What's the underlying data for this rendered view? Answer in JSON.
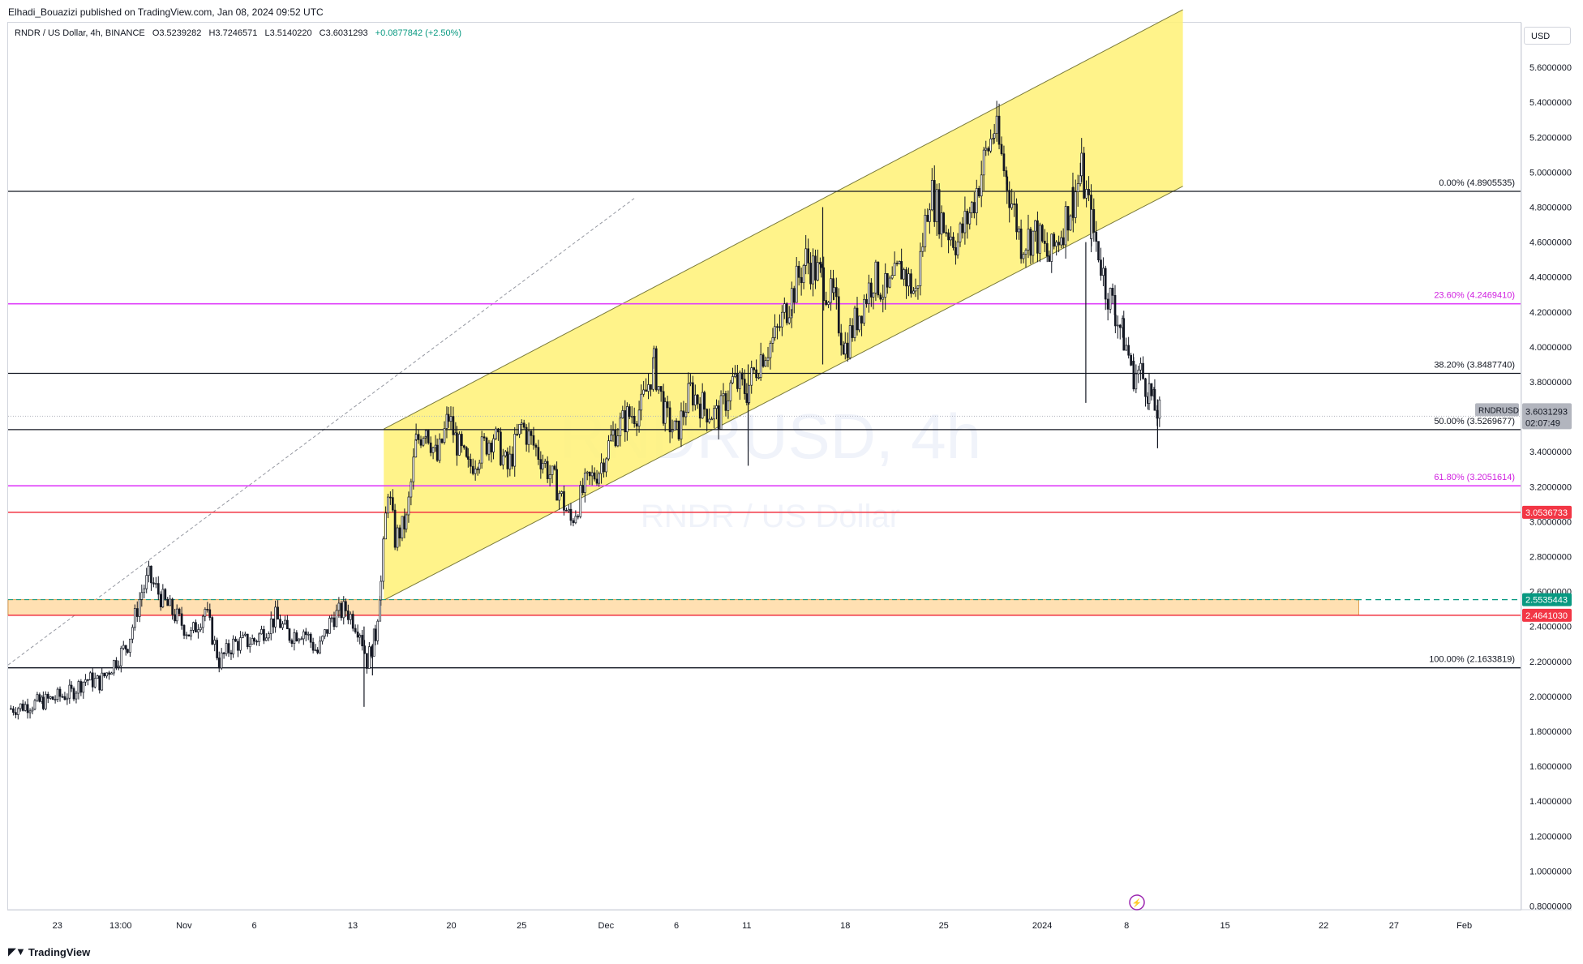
{
  "header": {
    "publisher": "Elhadi_Bouazizi published on TradingView.com, Jan 08, 2024 09:52 UTC"
  },
  "legend": {
    "symbol": "RNDR / US Dollar, 4h, BINANCE",
    "open": "O3.5239282",
    "high": "H3.7246571",
    "low": "L3.5140220",
    "close": "C3.6031293",
    "change": "+0.0877842 (+2.50%)"
  },
  "currency_button": "USD",
  "watermark": {
    "ticker": "RNDRUSD, 4h",
    "name": "RNDR / US Dollar"
  },
  "footer": {
    "brand": "TradingView",
    "icon": "tradingview-logo-icon"
  },
  "colors": {
    "channel_fill": "#fff176",
    "fib_black": "#131722",
    "fib_magenta": "#e040fb",
    "support_red": "#f23645",
    "zone_fill": "#ffe0b2",
    "green_dashed": "#089981",
    "price_label_bg": "#b2b5be"
  },
  "chart_data": {
    "type": "candlestick",
    "symbol": "RNDR / US Dollar",
    "interval": "4h",
    "exchange": "BINANCE",
    "ylim": [
      0.7,
      5.95
    ],
    "y_ticks": [
      "0.8000000",
      "1.0000000",
      "1.2000000",
      "1.4000000",
      "1.6000000",
      "1.8000000",
      "2.0000000",
      "2.2000000",
      "2.4000000",
      "2.6000000",
      "2.8000000",
      "3.0000000",
      "3.2000000",
      "3.4000000",
      "3.6000000",
      "3.8000000",
      "4.0000000",
      "4.2000000",
      "4.4000000",
      "4.6000000",
      "4.8000000",
      "5.0000000",
      "5.2000000",
      "5.4000000",
      "5.6000000"
    ],
    "x_labels": [
      {
        "label": "23",
        "day": 0
      },
      {
        "label": "13:00",
        "day": 4.5
      },
      {
        "label": "Nov",
        "day": 9
      },
      {
        "label": "6",
        "day": 14
      },
      {
        "label": "13",
        "day": 21
      },
      {
        "label": "20",
        "day": 28
      },
      {
        "label": "25",
        "day": 33
      },
      {
        "label": "Dec",
        "day": 39
      },
      {
        "label": "6",
        "day": 44
      },
      {
        "label": "11",
        "day": 49
      },
      {
        "label": "18",
        "day": 56
      },
      {
        "label": "25",
        "day": 63
      },
      {
        "label": "2024",
        "day": 70
      },
      {
        "label": "8",
        "day": 76
      },
      {
        "label": "15",
        "day": 83
      },
      {
        "label": "22",
        "day": 90
      },
      {
        "label": "27",
        "day": 95
      },
      {
        "label": "Feb",
        "day": 100
      }
    ],
    "x_range_days": [
      -3.5,
      104
    ],
    "price_path": [
      [
        -3.3,
        1.93
      ],
      [
        -1,
        1.97
      ],
      [
        1,
        2.02
      ],
      [
        2,
        2.1
      ],
      [
        3,
        2.08
      ],
      [
        5,
        2.3
      ],
      [
        6,
        2.6
      ],
      [
        6.5,
        2.68
      ],
      [
        7.5,
        2.55
      ],
      [
        8.5,
        2.45
      ],
      [
        9.5,
        2.35
      ],
      [
        10.5,
        2.5
      ],
      [
        11.5,
        2.2
      ],
      [
        12.5,
        2.3
      ],
      [
        14,
        2.32
      ],
      [
        15.5,
        2.45
      ],
      [
        16.5,
        2.35
      ],
      [
        17.5,
        2.38
      ],
      [
        18.5,
        2.25
      ],
      [
        19.5,
        2.45
      ],
      [
        20.5,
        2.5
      ],
      [
        21.5,
        2.38
      ],
      [
        22,
        2.2
      ],
      [
        22.6,
        2.35
      ],
      [
        23,
        2.65
      ],
      [
        23.5,
        3.2
      ],
      [
        24,
        2.9
      ],
      [
        24.8,
        3.0
      ],
      [
        25.5,
        3.45
      ],
      [
        26.2,
        3.55
      ],
      [
        27,
        3.35
      ],
      [
        27.8,
        3.6
      ],
      [
        28.4,
        3.45
      ],
      [
        29.2,
        3.3
      ],
      [
        30,
        3.4
      ],
      [
        31,
        3.5
      ],
      [
        32,
        3.3
      ],
      [
        33,
        3.55
      ],
      [
        34.5,
        3.35
      ],
      [
        35.5,
        3.2
      ],
      [
        36.5,
        3.0
      ],
      [
        37.5,
        3.2
      ],
      [
        38.5,
        3.3
      ],
      [
        39.5,
        3.5
      ],
      [
        40.5,
        3.6
      ],
      [
        41.5,
        3.65
      ],
      [
        42.4,
        3.9
      ],
      [
        43.2,
        3.6
      ],
      [
        44,
        3.5
      ],
      [
        45,
        3.75
      ],
      [
        46,
        3.65
      ],
      [
        47,
        3.6
      ],
      [
        48,
        3.8
      ],
      [
        49,
        3.75
      ],
      [
        50,
        3.95
      ],
      [
        51,
        4.05
      ],
      [
        52.2,
        4.3
      ],
      [
        53.2,
        4.5
      ],
      [
        54.3,
        4.4
      ],
      [
        55.2,
        4.25
      ],
      [
        56,
        4.0
      ],
      [
        57,
        4.2
      ],
      [
        58,
        4.4
      ],
      [
        59,
        4.3
      ],
      [
        60,
        4.45
      ],
      [
        61,
        4.3
      ],
      [
        62,
        4.9
      ],
      [
        63,
        4.7
      ],
      [
        64,
        4.6
      ],
      [
        65,
        4.8
      ],
      [
        66,
        5.1
      ],
      [
        66.6,
        5.25
      ],
      [
        67.5,
        4.95
      ],
      [
        68.5,
        4.6
      ],
      [
        69.5,
        4.65
      ],
      [
        70.5,
        4.5
      ],
      [
        71.5,
        4.7
      ],
      [
        72.2,
        4.85
      ],
      [
        72.8,
        5.0
      ],
      [
        73.5,
        4.7
      ],
      [
        74,
        4.55
      ],
      [
        74.5,
        4.35
      ],
      [
        75.2,
        4.2
      ],
      [
        75.8,
        4.05
      ],
      [
        76.5,
        3.85
      ],
      [
        77,
        3.85
      ],
      [
        77.6,
        3.75
      ],
      [
        78,
        3.65
      ],
      [
        78.5,
        3.6
      ]
    ],
    "wicks": [
      {
        "day": 21.8,
        "low": 1.94,
        "high": 2.4
      },
      {
        "day": 49.1,
        "low": 3.32,
        "high": 3.9
      },
      {
        "day": 73.1,
        "low": 3.68,
        "high": 4.6
      },
      {
        "day": 54.4,
        "low": 3.9,
        "high": 4.8
      },
      {
        "day": 22.4,
        "low": 2.12,
        "high": 2.3
      },
      {
        "day": 78.2,
        "low": 3.42,
        "high": 3.7
      }
    ],
    "last_candle": {
      "open": 3.5239282,
      "high": 3.7246571,
      "low": 3.514022,
      "close": 3.6031293
    },
    "fib_levels": [
      {
        "ratio": "0.00%",
        "price": 4.8905535,
        "label": "0.00% (4.8905535)",
        "color": "black"
      },
      {
        "ratio": "23.60%",
        "price": 4.246941,
        "label": "23.60% (4.2469410)",
        "color": "magenta"
      },
      {
        "ratio": "38.20%",
        "price": 3.848774,
        "label": "38.20% (3.8487740)",
        "color": "black"
      },
      {
        "ratio": "50.00%",
        "price": 3.5269677,
        "label": "50.00% (3.5269677)",
        "color": "black"
      },
      {
        "ratio": "61.80%",
        "price": 3.2051614,
        "label": "61.80% (3.2051614)",
        "color": "magenta"
      },
      {
        "ratio": "100.00%",
        "price": 2.1633819,
        "label": "100.00% (2.1633819)",
        "color": "black"
      }
    ],
    "support_lines": [
      {
        "price": 3.0536733,
        "label": "3.0536733"
      },
      {
        "price": 2.464103,
        "label": "2.4641030"
      }
    ],
    "zone": {
      "from_day": -3.5,
      "to_day": 92.5,
      "low": 2.464103,
      "high": 2.5535443
    },
    "green_level": {
      "price": 2.5535443,
      "label": "2.5535443"
    },
    "channel": {
      "lower": [
        [
          23.2,
          2.55
        ],
        [
          80,
          4.92
        ]
      ],
      "upper": [
        [
          23.2,
          3.53
        ],
        [
          80,
          5.93
        ]
      ]
    },
    "dashed_trend": [
      [
        -3.5,
        2.18
      ],
      [
        41,
        4.85
      ]
    ],
    "current_price": {
      "symbol": "RNDRUSD",
      "price": "3.6031293",
      "countdown": "02:07:49",
      "value": 3.6031293
    }
  }
}
